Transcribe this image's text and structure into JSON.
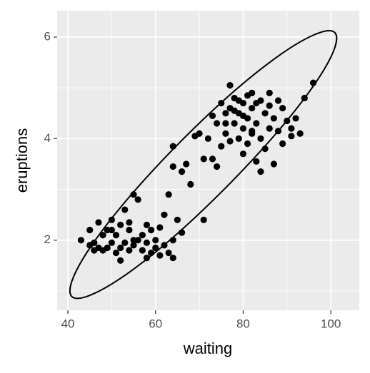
{
  "chart_data": {
    "type": "scatter",
    "x_label": "waiting",
    "y_label": "eruptions",
    "xlim": [
      37.55,
      106.5
    ],
    "ylim": [
      0.62,
      6.52
    ],
    "xticks": [
      40,
      60,
      80,
      100
    ],
    "yticks": [
      2,
      4,
      6
    ],
    "x_minor_grid": [
      50,
      70,
      90
    ],
    "y_minor_grid": [
      1,
      3,
      5
    ],
    "grid": true,
    "color": "#000000",
    "x": [
      43,
      45,
      45,
      46,
      47,
      47,
      48,
      48,
      49,
      49,
      50,
      50,
      51,
      51,
      52,
      52,
      52,
      53,
      53,
      54,
      54,
      54,
      55,
      55,
      56,
      56,
      57,
      57,
      58,
      58,
      59,
      59,
      60,
      60,
      61,
      62,
      62,
      63,
      63,
      64,
      64,
      65,
      66,
      58,
      50,
      46,
      55,
      61,
      64,
      64,
      66,
      67,
      68,
      69,
      70,
      71,
      71,
      72,
      73,
      73,
      74,
      74,
      75,
      75,
      76,
      76,
      77,
      77,
      77,
      78,
      78,
      79,
      79,
      80,
      80,
      80,
      81,
      81,
      81,
      82,
      82,
      82,
      83,
      83,
      84,
      84,
      84,
      85,
      85,
      86,
      86,
      87,
      87,
      88,
      88,
      89,
      89,
      90,
      91,
      91,
      92,
      93,
      94,
      96,
      78,
      79,
      80,
      83,
      76,
      86,
      82
    ],
    "y": [
      2.0,
      1.9,
      2.2,
      1.8,
      2.35,
      1.85,
      1.8,
      2.1,
      1.85,
      2.2,
      1.95,
      2.4,
      1.75,
      2.1,
      1.85,
      2.3,
      1.6,
      1.95,
      2.6,
      1.8,
      2.2,
      2.35,
      2.9,
      1.9,
      2.8,
      2.0,
      1.8,
      2.1,
      1.95,
      2.3,
      1.75,
      2.2,
      1.85,
      2.0,
      2.25,
      1.9,
      2.5,
      1.75,
      2.9,
      2.0,
      1.65,
      2.4,
      2.15,
      1.65,
      2.2,
      1.95,
      2.0,
      1.7,
      3.85,
      3.45,
      3.35,
      3.5,
      3.1,
      4.05,
      4.1,
      2.4,
      3.6,
      4.0,
      3.6,
      4.45,
      3.45,
      4.3,
      4.7,
      3.85,
      4.5,
      4.1,
      5.05,
      4.6,
      3.95,
      4.3,
      4.8,
      4.0,
      4.5,
      4.7,
      3.7,
      4.2,
      4.85,
      4.4,
      3.9,
      4.6,
      4.1,
      4.9,
      4.3,
      3.55,
      4.75,
      4.0,
      3.35,
      4.5,
      3.8,
      4.9,
      4.2,
      4.4,
      3.5,
      4.75,
      4.15,
      4.6,
      3.9,
      4.35,
      4.05,
      4.2,
      4.4,
      4.1,
      4.8,
      5.1,
      4.55,
      4.75,
      4.45,
      4.7,
      4.3,
      4.65,
      4.15
    ],
    "ellipse": {
      "x": [
        100.9,
        100.6,
        95.8,
        87.2,
        76.1,
        64.2,
        53.4,
        45.2,
        40.9,
        41.2,
        46.0,
        54.6,
        65.7,
        77.6,
        88.4,
        96.6
      ],
      "y": [
        6.09,
        5.72,
        5.01,
        4.07,
        3.04,
        2.07,
        1.33,
        0.92,
        0.89,
        1.26,
        1.97,
        2.91,
        3.94,
        4.91,
        5.65,
        6.06
      ],
      "color": "#000000"
    }
  }
}
